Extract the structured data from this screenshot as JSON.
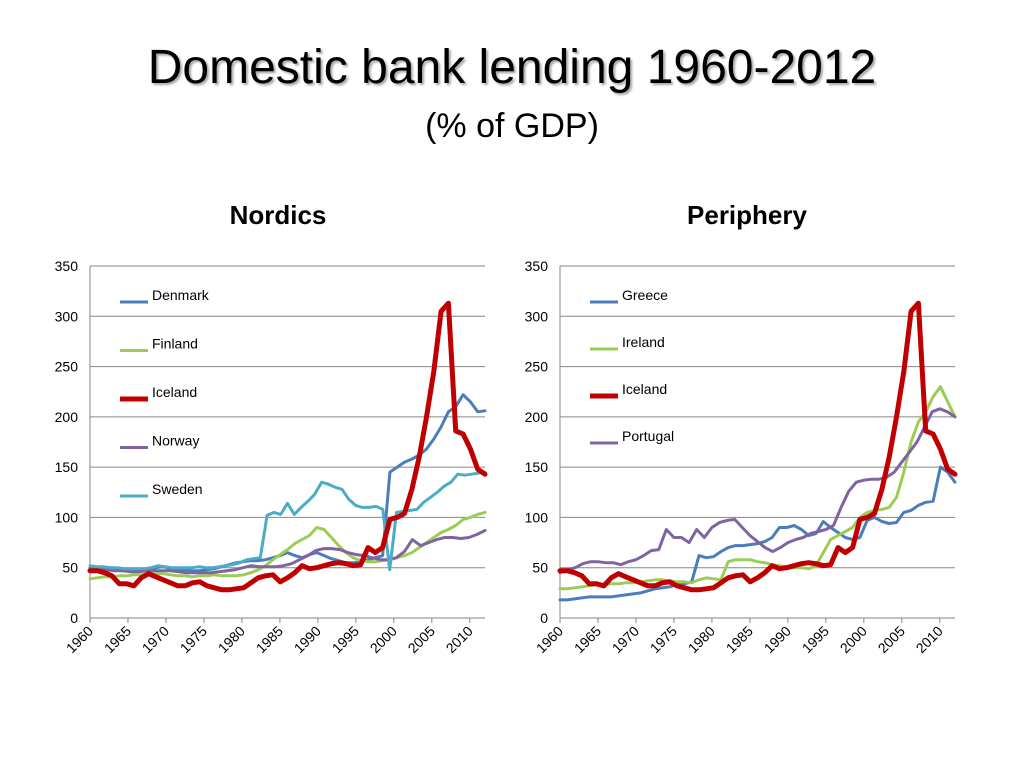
{
  "slide": {
    "title": "Domestic bank lending 1960-2012",
    "subtitle": "(% of GDP)"
  },
  "chart_data": [
    {
      "type": "line",
      "title": "Nordics",
      "xlabel": "",
      "ylabel": "",
      "ylim": [
        0,
        350
      ],
      "yticks": [
        0,
        50,
        100,
        150,
        200,
        250,
        300,
        350
      ],
      "xticks": [
        1960,
        1965,
        1970,
        1975,
        1980,
        1985,
        1990,
        1995,
        2000,
        2005,
        2010
      ],
      "x_start": 1960,
      "x_end": 2012,
      "legend": "top-left inside",
      "series": [
        {
          "name": "Denmark",
          "color": "#4a7ebb",
          "width": 3,
          "values": [
            50,
            50,
            50,
            50,
            49,
            48,
            47,
            47,
            48,
            50,
            51,
            49,
            48,
            48,
            47,
            47,
            48,
            49,
            51,
            53,
            55,
            56,
            57,
            57,
            58,
            60,
            62,
            65,
            62,
            60,
            63,
            65,
            62,
            59,
            57,
            55,
            55,
            56,
            58,
            60,
            62,
            145,
            150,
            155,
            158,
            162,
            168,
            178,
            190,
            205,
            210,
            222,
            215,
            205,
            206
          ]
        },
        {
          "name": "Finland",
          "color": "#9bcc55",
          "width": 3,
          "values": [
            39,
            40,
            41,
            41,
            42,
            42,
            43,
            43,
            44,
            44,
            44,
            43,
            42,
            42,
            41,
            42,
            42,
            43,
            42,
            42,
            42,
            43,
            45,
            48,
            52,
            58,
            63,
            68,
            74,
            78,
            82,
            90,
            88,
            80,
            72,
            65,
            60,
            57,
            56,
            56,
            57,
            58,
            60,
            62,
            65,
            70,
            75,
            80,
            85,
            88,
            92,
            98,
            100,
            103,
            105
          ]
        },
        {
          "name": "Iceland",
          "color": "#c00000",
          "width": 5,
          "values": [
            47,
            47,
            45,
            42,
            34,
            34,
            32,
            40,
            44,
            41,
            38,
            35,
            32,
            32,
            35,
            36,
            32,
            30,
            28,
            28,
            29,
            30,
            35,
            40,
            42,
            43,
            36,
            40,
            45,
            52,
            49,
            50,
            52,
            54,
            55,
            54,
            52,
            53,
            70,
            65,
            70,
            98,
            100,
            104,
            128,
            160,
            200,
            245,
            305,
            313,
            186,
            183,
            168,
            148,
            143
          ]
        },
        {
          "name": "Norway",
          "color": "#8064a2",
          "width": 3,
          "values": [
            48,
            48,
            48,
            47,
            47,
            46,
            46,
            47,
            47,
            47,
            47,
            46,
            45,
            45,
            45,
            45,
            46,
            47,
            48,
            50,
            52,
            51,
            51,
            51,
            52,
            54,
            58,
            62,
            67,
            69,
            69,
            68,
            65,
            63,
            62,
            60,
            58,
            58,
            60,
            66,
            78,
            72,
            75,
            78,
            80,
            80,
            79,
            80,
            83,
            87
          ]
        },
        {
          "name": "Sweden",
          "color": "#4bacc6",
          "width": 3,
          "values": [
            52,
            51,
            51,
            50,
            50,
            49,
            49,
            49,
            49,
            50,
            52,
            51,
            50,
            50,
            50,
            50,
            51,
            50,
            50,
            51,
            52,
            53,
            55,
            58,
            59,
            60,
            102,
            105,
            103,
            114,
            103,
            110,
            116,
            123,
            135,
            133,
            130,
            128,
            118,
            112,
            110,
            110,
            111,
            108,
            48,
            105,
            106,
            107,
            108,
            115,
            120,
            125,
            131,
            135,
            143,
            142,
            143,
            144,
            145
          ]
        }
      ]
    },
    {
      "type": "line",
      "title": "Periphery",
      "xlabel": "",
      "ylabel": "",
      "ylim": [
        0,
        350
      ],
      "yticks": [
        0,
        50,
        100,
        150,
        200,
        250,
        300,
        350
      ],
      "xticks": [
        1960,
        1965,
        1970,
        1975,
        1980,
        1985,
        1990,
        1995,
        2000,
        2005,
        2010
      ],
      "x_start": 1960,
      "x_end": 2012,
      "legend": "top-left inside",
      "series": [
        {
          "name": "Greece",
          "color": "#4a7ebb",
          "width": 3,
          "values": [
            18,
            18,
            19,
            20,
            21,
            21,
            21,
            21,
            22,
            23,
            24,
            25,
            27,
            29,
            30,
            31,
            33,
            34,
            36,
            62,
            60,
            61,
            66,
            70,
            72,
            72,
            73,
            74,
            76,
            80,
            90,
            90,
            92,
            88,
            82,
            84,
            96,
            90,
            85,
            80,
            78,
            80,
            97,
            100,
            96,
            94,
            95,
            105,
            107,
            112,
            115,
            116,
            150,
            145,
            135
          ]
        },
        {
          "name": "Ireland",
          "color": "#9bcc55",
          "width": 3,
          "values": [
            29,
            29,
            30,
            31,
            32,
            33,
            33,
            34,
            34,
            35,
            35,
            36,
            37,
            38,
            38,
            37,
            36,
            36,
            35,
            38,
            40,
            39,
            38,
            56,
            58,
            58,
            58,
            56,
            55,
            53,
            52,
            51,
            50,
            50,
            49,
            52,
            65,
            78,
            82,
            86,
            90,
            100,
            105,
            107,
            108,
            110,
            120,
            145,
            175,
            195,
            205,
            220,
            230,
            215,
            200
          ]
        },
        {
          "name": "Iceland",
          "color": "#c00000",
          "width": 5,
          "values": [
            47,
            47,
            45,
            42,
            34,
            34,
            32,
            40,
            44,
            41,
            38,
            35,
            32,
            32,
            35,
            36,
            32,
            30,
            28,
            28,
            29,
            30,
            35,
            40,
            42,
            43,
            36,
            40,
            45,
            52,
            49,
            50,
            52,
            54,
            55,
            54,
            52,
            53,
            70,
            65,
            70,
            98,
            100,
            104,
            128,
            160,
            200,
            245,
            305,
            313,
            186,
            183,
            168,
            148,
            143
          ]
        },
        {
          "name": "Portugal",
          "color": "#8064a2",
          "width": 3,
          "values": [
            45,
            48,
            50,
            54,
            56,
            56,
            55,
            55,
            53,
            56,
            58,
            62,
            67,
            68,
            88,
            80,
            80,
            75,
            88,
            80,
            90,
            95,
            97,
            98,
            90,
            82,
            76,
            70,
            66,
            70,
            75,
            78,
            80,
            84,
            86,
            88,
            92,
            110,
            126,
            135,
            137,
            138,
            138,
            140,
            145,
            155,
            165,
            175,
            190,
            205,
            208,
            205,
            200
          ]
        }
      ]
    }
  ]
}
